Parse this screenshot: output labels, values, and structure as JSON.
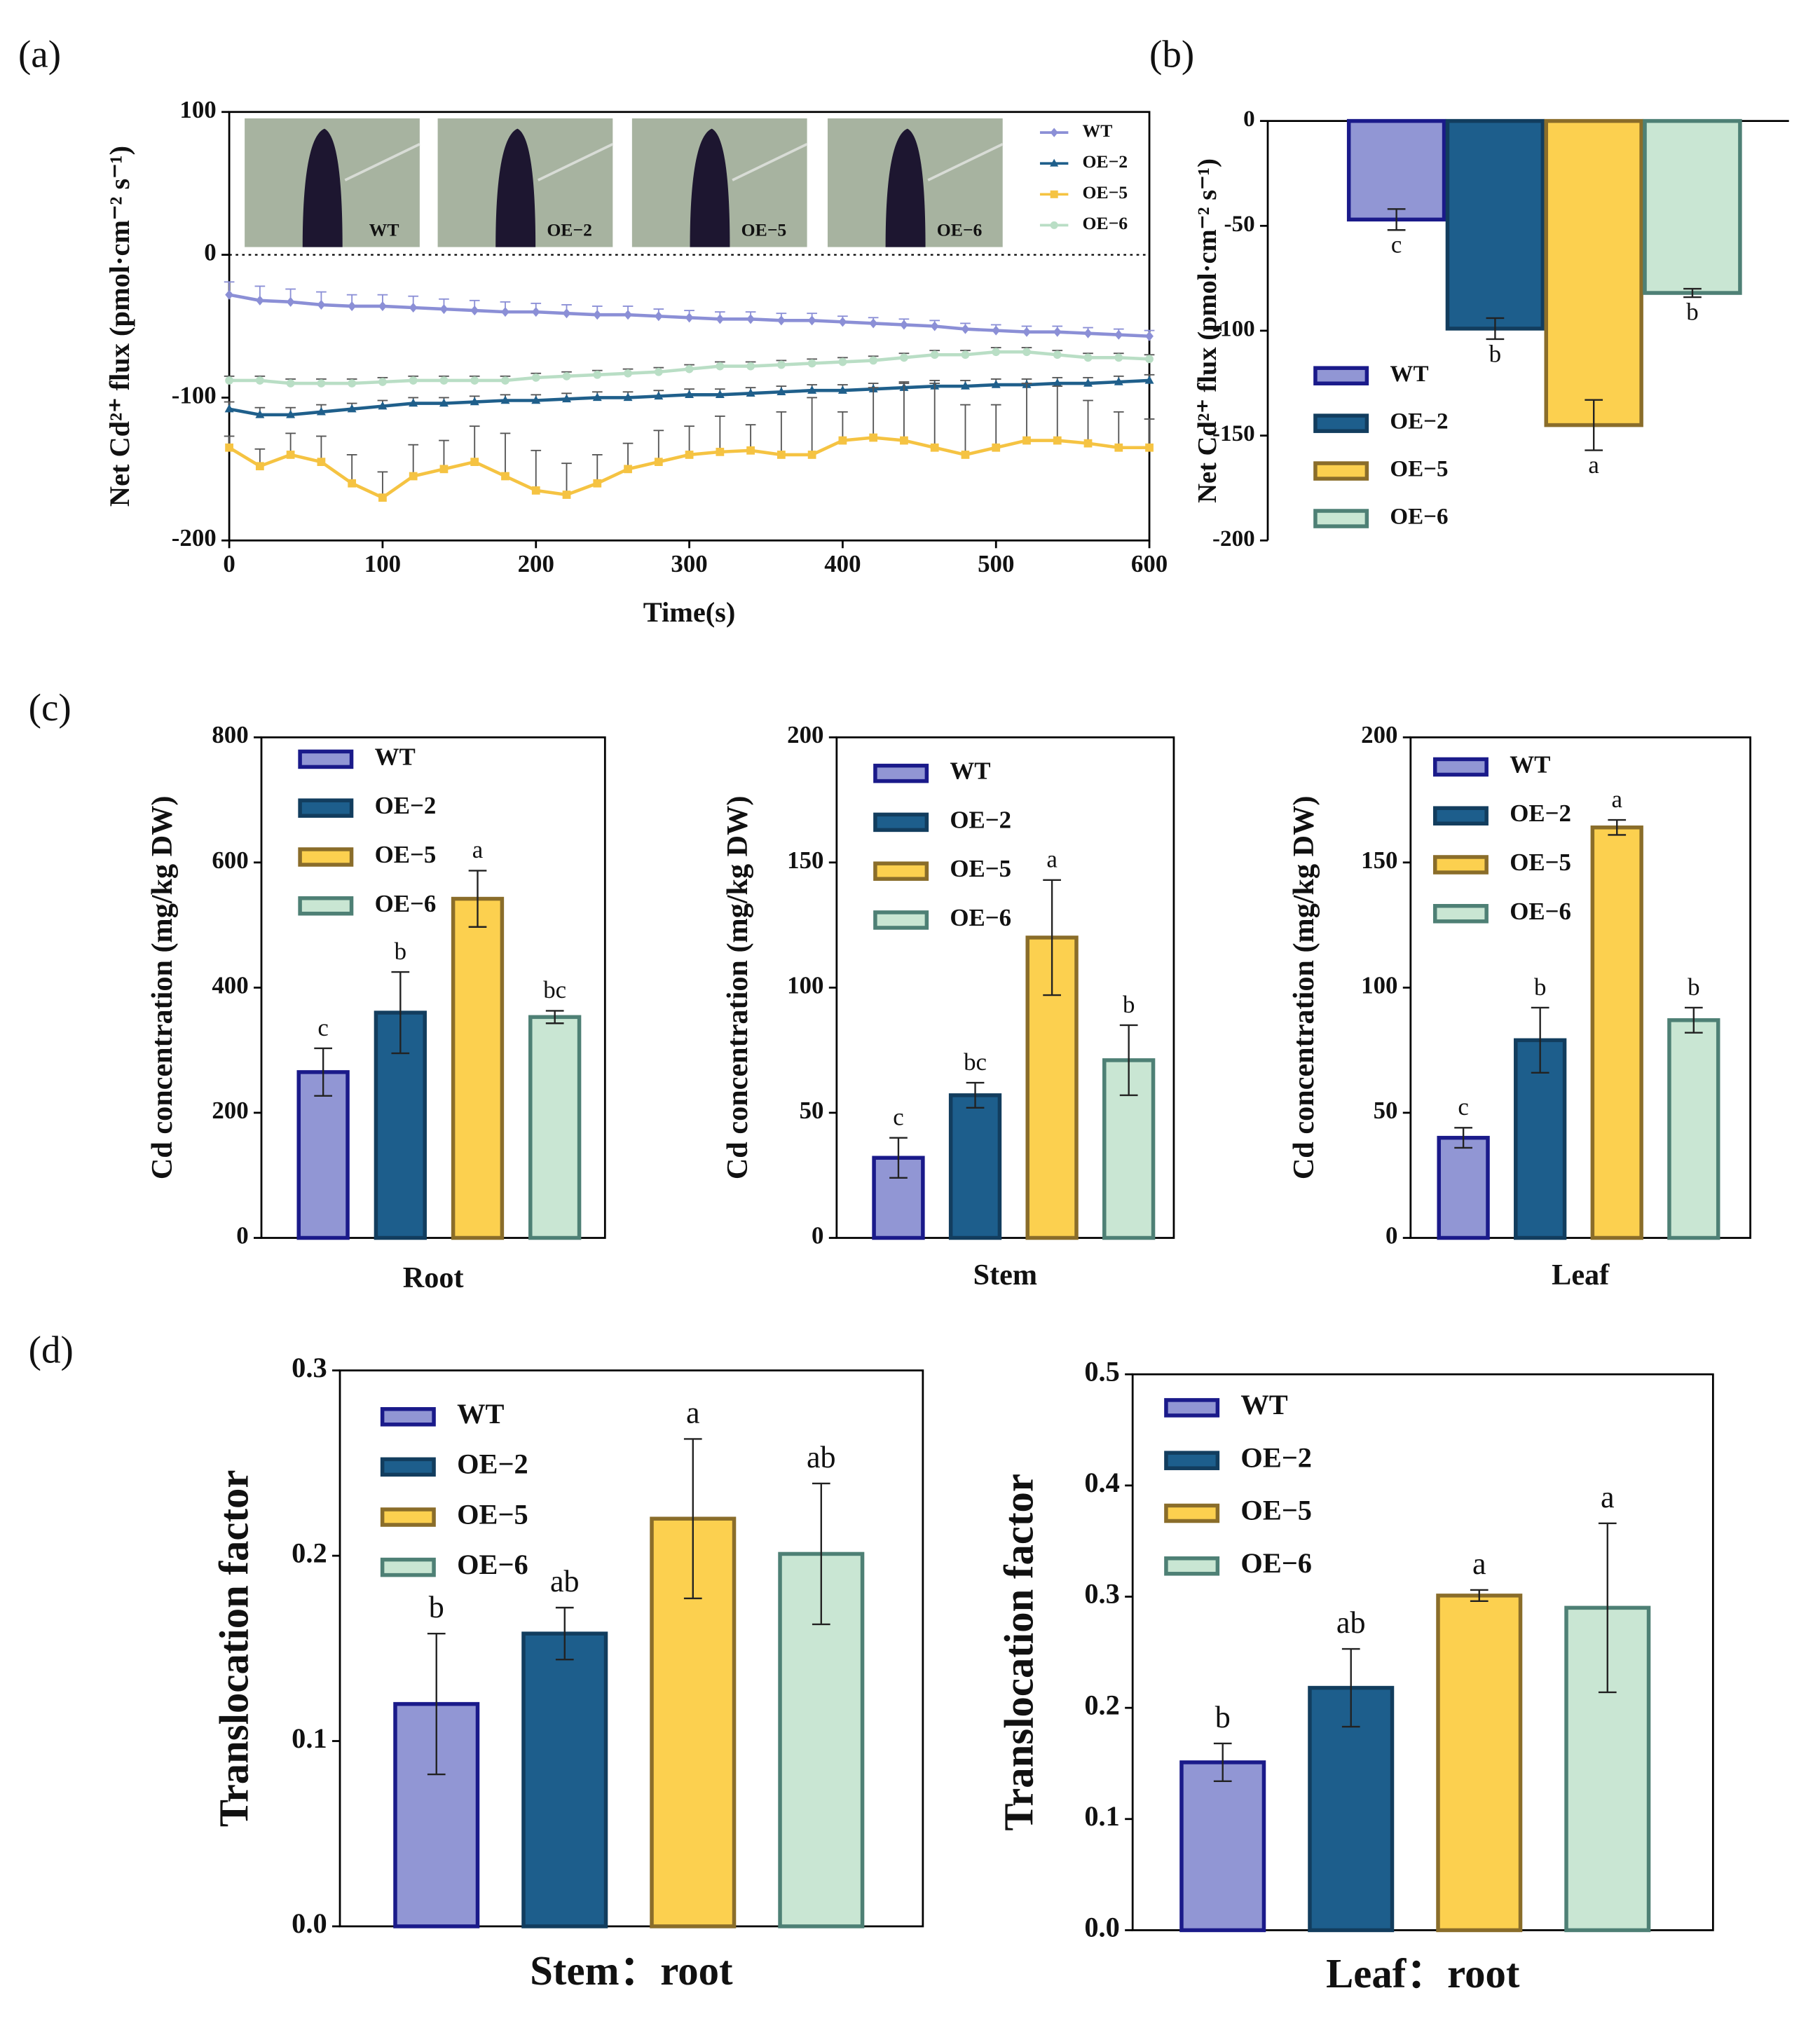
{
  "chart_data": [
    {
      "type": "line",
      "panel": "(a)",
      "ylabel": "Net Cd²⁺ flux (pmol·cm⁻² s⁻¹)",
      "xlabel": "Time(s)",
      "x": [
        0,
        20,
        40,
        60,
        80,
        100,
        120,
        140,
        160,
        180,
        200,
        220,
        240,
        260,
        280,
        300,
        320,
        340,
        360,
        380,
        400,
        420,
        440,
        460,
        480,
        500,
        520,
        540,
        560,
        580,
        600
      ],
      "xlim": [
        0,
        600
      ],
      "xticks": [
        0,
        100,
        200,
        300,
        400,
        500,
        600
      ],
      "ylim": [
        -200,
        100
      ],
      "yticks": [
        -200,
        -100,
        0,
        100
      ],
      "zero_line": true,
      "legend": "upper right",
      "inset_labels": [
        "WT",
        "OE−2",
        "OE−5",
        "OE−6"
      ],
      "series": [
        {
          "name": "WT",
          "color": "#8b8fd6",
          "marker": "diamond",
          "values": [
            -28,
            -32,
            -33,
            -35,
            -36,
            -36,
            -37,
            -38,
            -39,
            -40,
            -40,
            -41,
            -42,
            -42,
            -43,
            -44,
            -45,
            -45,
            -46,
            -46,
            -47,
            -48,
            -49,
            -50,
            -52,
            -53,
            -54,
            -54,
            -55,
            -56,
            -57
          ],
          "errors": [
            9,
            10,
            9,
            9,
            8,
            8,
            8,
            7,
            7,
            7,
            6,
            6,
            6,
            6,
            5,
            5,
            5,
            5,
            5,
            5,
            4,
            4,
            4,
            4,
            4,
            4,
            4,
            4,
            4,
            4,
            4
          ]
        },
        {
          "name": "OE−2",
          "color": "#1f5f8b",
          "marker": "triangle",
          "values": [
            -108,
            -112,
            -112,
            -110,
            -108,
            -106,
            -104,
            -104,
            -103,
            -102,
            -102,
            -101,
            -100,
            -100,
            -99,
            -98,
            -98,
            -97,
            -96,
            -95,
            -95,
            -94,
            -93,
            -92,
            -92,
            -91,
            -91,
            -90,
            -90,
            -89,
            -88
          ],
          "errors": [
            5,
            5,
            5,
            5,
            4,
            4,
            4,
            4,
            4,
            4,
            4,
            4,
            4,
            4,
            4,
            4,
            4,
            4,
            4,
            4,
            4,
            4,
            4,
            4,
            4,
            4,
            4,
            4,
            4,
            4,
            4
          ]
        },
        {
          "name": "OE−5",
          "color": "#f5c342",
          "marker": "square",
          "values": [
            -135,
            -148,
            -140,
            -145,
            -160,
            -170,
            -155,
            -150,
            -145,
            -155,
            -165,
            -168,
            -160,
            -150,
            -145,
            -140,
            -138,
            -137,
            -140,
            -140,
            -130,
            -128,
            -130,
            -135,
            -140,
            -135,
            -130,
            -130,
            -132,
            -135,
            -135
          ],
          "errors": [
            8,
            12,
            15,
            18,
            20,
            18,
            22,
            20,
            25,
            30,
            28,
            22,
            20,
            18,
            22,
            20,
            25,
            18,
            30,
            40,
            20,
            35,
            40,
            45,
            35,
            30,
            40,
            38,
            30,
            25,
            20
          ]
        },
        {
          "name": "OE−6",
          "color": "#b9dec5",
          "marker": "circle",
          "values": [
            -88,
            -88,
            -90,
            -90,
            -90,
            -89,
            -88,
            -88,
            -88,
            -88,
            -86,
            -85,
            -84,
            -83,
            -82,
            -80,
            -78,
            -78,
            -77,
            -76,
            -75,
            -74,
            -72,
            -70,
            -70,
            -68,
            -68,
            -70,
            -72,
            -72,
            -73
          ],
          "errors": [
            3,
            3,
            3,
            3,
            3,
            3,
            3,
            3,
            3,
            3,
            3,
            3,
            3,
            3,
            3,
            3,
            3,
            3,
            3,
            3,
            3,
            3,
            3,
            3,
            3,
            3,
            3,
            3,
            3,
            3,
            3
          ]
        }
      ]
    },
    {
      "type": "bar",
      "panel": "(b)",
      "ylabel": "Net Cd²⁺ flux (pmol·cm⁻² s⁻¹)",
      "ylim": [
        -200,
        0
      ],
      "yticks": [
        -200,
        -150,
        -100,
        -50,
        0
      ],
      "legend": "lower left",
      "series": [
        {
          "name": "WT",
          "color": "#9196d4",
          "edgecolor": "#1a1a8a",
          "values": [
            -47
          ],
          "errors": [
            5
          ],
          "letters": [
            "c"
          ]
        },
        {
          "name": "OE−2",
          "color": "#1d5e8c",
          "edgecolor": "#123d5e",
          "values": [
            -99
          ],
          "errors": [
            5
          ],
          "letters": [
            "b"
          ]
        },
        {
          "name": "OE−5",
          "color": "#fcd04f",
          "edgecolor": "#8a6d2a",
          "values": [
            -145
          ],
          "errors": [
            12
          ],
          "letters": [
            "a"
          ]
        },
        {
          "name": "OE−6",
          "color": "#c9e6d3",
          "edgecolor": "#4e8075",
          "values": [
            -82
          ],
          "errors": [
            2
          ],
          "letters": [
            "b"
          ]
        }
      ]
    },
    {
      "type": "bar",
      "panel": "(c)",
      "ylabel": "Cd concentration (mg/kg DW)",
      "xlabel": "Root",
      "ylim": [
        0,
        800
      ],
      "yticks": [
        0,
        200,
        400,
        600,
        800
      ],
      "legend": "upper left",
      "series": [
        {
          "name": "WT",
          "color": "#9196d4",
          "edgecolor": "#1a1a8a",
          "values": [
            265
          ],
          "errors": [
            38
          ],
          "letters": [
            "c"
          ]
        },
        {
          "name": "OE−2",
          "color": "#1d5e8c",
          "edgecolor": "#123d5e",
          "values": [
            360
          ],
          "errors": [
            65
          ],
          "letters": [
            "b"
          ]
        },
        {
          "name": "OE−5",
          "color": "#fcd04f",
          "edgecolor": "#8a6d2a",
          "values": [
            542
          ],
          "errors": [
            45
          ],
          "letters": [
            "a"
          ]
        },
        {
          "name": "OE−6",
          "color": "#c9e6d3",
          "edgecolor": "#4e8075",
          "values": [
            353
          ],
          "errors": [
            10
          ],
          "letters": [
            "bc"
          ]
        }
      ]
    },
    {
      "type": "bar",
      "ylabel": "Cd concentration (mg/kg DW)",
      "xlabel": "Stem",
      "ylim": [
        0,
        200
      ],
      "yticks": [
        0,
        50,
        100,
        150,
        200
      ],
      "legend": "upper left",
      "series": [
        {
          "name": "WT",
          "color": "#9196d4",
          "edgecolor": "#1a1a8a",
          "values": [
            32
          ],
          "errors": [
            8
          ],
          "letters": [
            "c"
          ]
        },
        {
          "name": "OE−2",
          "color": "#1d5e8c",
          "edgecolor": "#123d5e",
          "values": [
            57
          ],
          "errors": [
            5
          ],
          "letters": [
            "bc"
          ]
        },
        {
          "name": "OE−5",
          "color": "#fcd04f",
          "edgecolor": "#8a6d2a",
          "values": [
            120
          ],
          "errors": [
            23
          ],
          "letters": [
            "a"
          ]
        },
        {
          "name": "OE−6",
          "color": "#c9e6d3",
          "edgecolor": "#4e8075",
          "values": [
            71
          ],
          "errors": [
            14
          ],
          "letters": [
            "b"
          ]
        }
      ]
    },
    {
      "type": "bar",
      "ylabel": "Cd concentration (mg/kg DW)",
      "xlabel": "Leaf",
      "ylim": [
        0,
        200
      ],
      "yticks": [
        0,
        50,
        100,
        150,
        200
      ],
      "legend": "upper left",
      "series": [
        {
          "name": "WT",
          "color": "#9196d4",
          "edgecolor": "#1a1a8a",
          "values": [
            40
          ],
          "errors": [
            4
          ],
          "letters": [
            "c"
          ]
        },
        {
          "name": "OE−2",
          "color": "#1d5e8c",
          "edgecolor": "#123d5e",
          "values": [
            79
          ],
          "errors": [
            13
          ],
          "letters": [
            "b"
          ]
        },
        {
          "name": "OE−5",
          "color": "#fcd04f",
          "edgecolor": "#8a6d2a",
          "values": [
            164
          ],
          "errors": [
            3
          ],
          "letters": [
            "a"
          ]
        },
        {
          "name": "OE−6",
          "color": "#c9e6d3",
          "edgecolor": "#4e8075",
          "values": [
            87
          ],
          "errors": [
            5
          ],
          "letters": [
            "b"
          ]
        }
      ]
    },
    {
      "type": "bar",
      "panel": "(d)",
      "ylabel": "Translocation factor",
      "xlabel": "Stem：root",
      "ylim": [
        0,
        0.3
      ],
      "yticks": [
        {
          "value": 0,
          "label": "0.0"
        },
        0.1,
        0.2,
        0.3
      ],
      "legend": "upper left",
      "series": [
        {
          "name": "WT",
          "color": "#9196d4",
          "edgecolor": "#1a1a8a",
          "values": [
            0.12
          ],
          "errors": [
            0.038
          ],
          "letters": [
            "b"
          ]
        },
        {
          "name": "OE−2",
          "color": "#1d5e8c",
          "edgecolor": "#123d5e",
          "values": [
            0.158
          ],
          "errors": [
            0.014
          ],
          "letters": [
            "ab"
          ]
        },
        {
          "name": "OE−5",
          "color": "#fcd04f",
          "edgecolor": "#8a6d2a",
          "values": [
            0.22
          ],
          "errors": [
            0.043
          ],
          "letters": [
            "a"
          ]
        },
        {
          "name": "OE−6",
          "color": "#c9e6d3",
          "edgecolor": "#4e8075",
          "values": [
            0.201
          ],
          "errors": [
            0.038
          ],
          "letters": [
            "ab"
          ]
        }
      ]
    },
    {
      "type": "bar",
      "ylabel": "Translocation factor",
      "xlabel": "Leaf：root",
      "ylim": [
        0,
        0.5
      ],
      "yticks": [
        {
          "value": 0,
          "label": "0.0"
        },
        0.1,
        0.2,
        0.3,
        0.4,
        0.5
      ],
      "legend": "upper left",
      "series": [
        {
          "name": "WT",
          "color": "#9196d4",
          "edgecolor": "#1a1a8a",
          "values": [
            0.151
          ],
          "errors": [
            0.017
          ],
          "letters": [
            "b"
          ]
        },
        {
          "name": "OE−2",
          "color": "#1d5e8c",
          "edgecolor": "#123d5e",
          "values": [
            0.218
          ],
          "errors": [
            0.035
          ],
          "letters": [
            "ab"
          ]
        },
        {
          "name": "OE−5",
          "color": "#fcd04f",
          "edgecolor": "#8a6d2a",
          "values": [
            0.301
          ],
          "errors": [
            0.005
          ],
          "letters": [
            "a"
          ]
        },
        {
          "name": "OE−6",
          "color": "#c9e6d3",
          "edgecolor": "#4e8075",
          "values": [
            0.29
          ],
          "errors": [
            0.076
          ],
          "letters": [
            "a"
          ]
        }
      ]
    }
  ]
}
